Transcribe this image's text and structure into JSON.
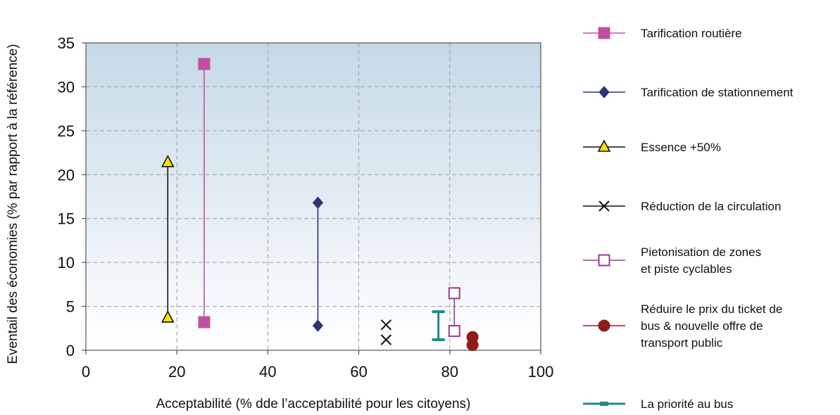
{
  "chart_data": {
    "type": "scatter",
    "title": "",
    "xlabel": "Acceptabilité (% dde l’acceptabilité pour les citoyens)",
    "ylabel": "Eventail des économies (% par rapport à la référence)",
    "xlim": [
      0,
      100
    ],
    "ylim": [
      0,
      35
    ],
    "xticks": [
      0,
      20,
      40,
      60,
      80,
      100
    ],
    "yticks": [
      0,
      5,
      10,
      15,
      20,
      25,
      30,
      35
    ],
    "grid": true,
    "legend_position": "right",
    "background": {
      "top_color": "#c5d9e6",
      "bottom_color": "#ffffff"
    },
    "series": [
      {
        "name": "Tarification routière",
        "color": "#c0509f",
        "marker": "square-filled",
        "x": [
          26,
          26
        ],
        "y": [
          3.2,
          32.6
        ]
      },
      {
        "name": "Tarification de stationnement",
        "color": "#2e3576",
        "marker": "diamond-filled",
        "x": [
          51,
          51
        ],
        "y": [
          2.8,
          16.8
        ]
      },
      {
        "name": "Essence +50%",
        "color": "#111111",
        "marker_fill": "#ffe000",
        "marker": "triangle",
        "x": [
          18,
          18
        ],
        "y": [
          3.7,
          21.4
        ]
      },
      {
        "name": "Réduction de la circulation",
        "color": "#111111",
        "marker": "x",
        "x": [
          66,
          66
        ],
        "y": [
          1.2,
          2.9
        ]
      },
      {
        "name": "Pietonisation de zones\net piste cyclables",
        "color": "#9a3a96",
        "marker": "square-open",
        "x": [
          81,
          81
        ],
        "y": [
          2.2,
          6.5
        ]
      },
      {
        "name": "Réduire le prix du ticket de\nbus & nouvelle offre de\ntransport public",
        "color": "#8e1b1b",
        "marker": "circle-filled",
        "x": [
          85,
          85
        ],
        "y": [
          0.6,
          1.5
        ]
      },
      {
        "name": "La priorité au bus",
        "color": "#1c8a8a",
        "marker": "bar",
        "x": [
          77.5,
          77.5
        ],
        "y": [
          1.2,
          4.4
        ]
      }
    ]
  }
}
